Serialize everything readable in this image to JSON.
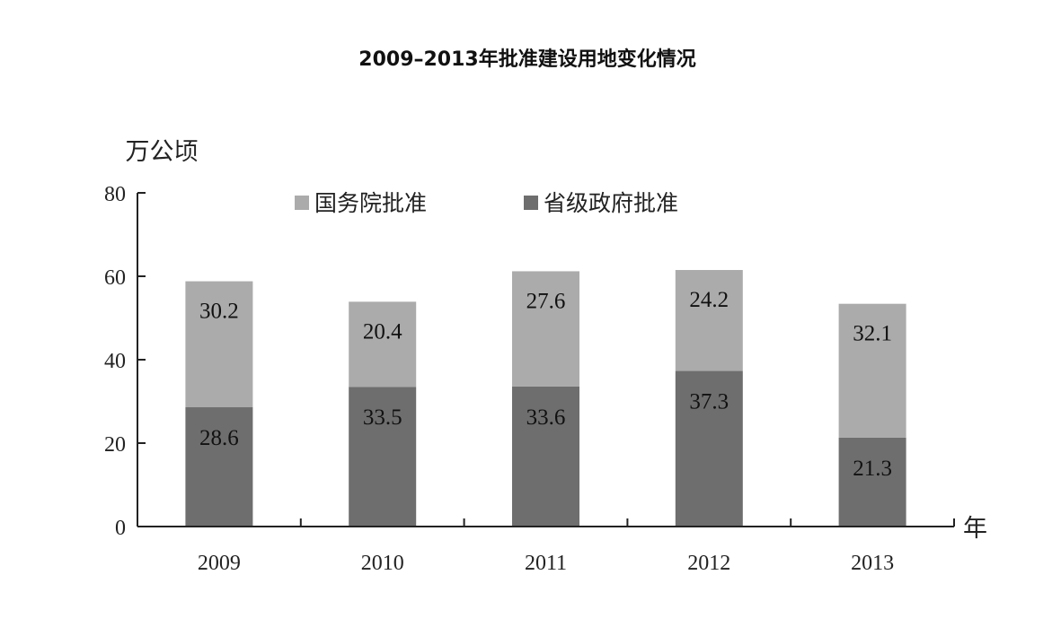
{
  "chart_data": {
    "type": "bar",
    "stacked": true,
    "title": "2009–2013年批准建设用地变化情况",
    "ylabel": "万公顷",
    "xlabel": "年",
    "categories": [
      "2009",
      "2010",
      "2011",
      "2012",
      "2013"
    ],
    "ylim": [
      0,
      80
    ],
    "yticks": [
      0,
      20,
      40,
      60,
      80
    ],
    "legend_position": "top",
    "grid": false,
    "series": [
      {
        "name": "省级政府批准",
        "values": [
          28.6,
          33.5,
          33.6,
          37.3,
          21.3
        ],
        "color": "#6e6e6e"
      },
      {
        "name": "国务院批准",
        "values": [
          30.2,
          20.4,
          27.6,
          24.2,
          32.1
        ],
        "color": "#ababab"
      }
    ],
    "data_labels": {
      "省级政府批准": [
        "28.6",
        "33.5",
        "33.6",
        "37.3",
        "21.3"
      ],
      "国务院批准": [
        "30.2",
        "20.4",
        "27.6",
        "24.2",
        "32.1"
      ]
    }
  }
}
